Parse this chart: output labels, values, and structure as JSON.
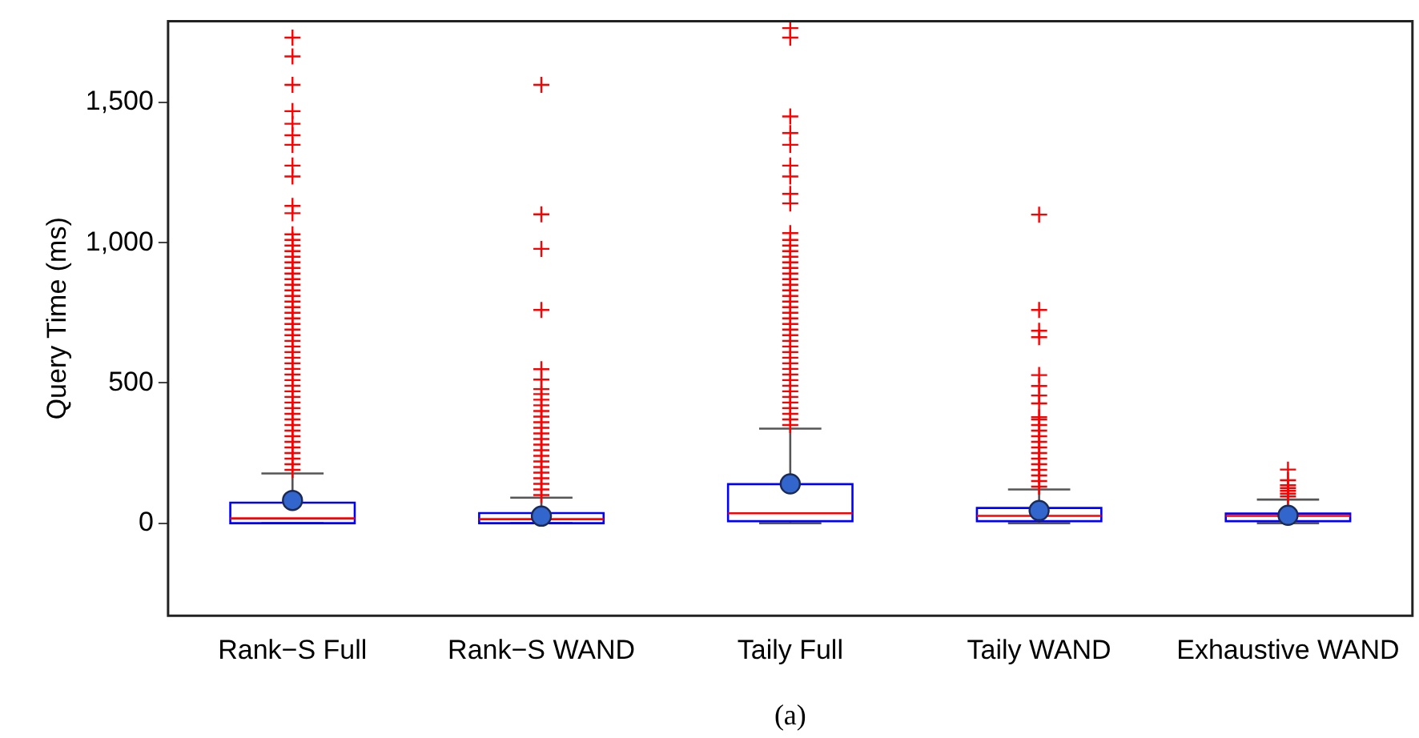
{
  "chart_data": {
    "type": "box",
    "categories": [
      "Rank−S Full",
      "Rank−S WAND",
      "Taily Full",
      "Taily WAND",
      "Exhaustive WAND"
    ],
    "ylabel": "Query Time (ms)",
    "ylim": [
      -330,
      1790
    ],
    "yticks": [
      0,
      500,
      {
        "value": 1000,
        "label": "1,000"
      },
      {
        "value": 1500,
        "label": "1,500"
      }
    ],
    "grid": false,
    "legend": false,
    "annotations": [
      "(a)"
    ],
    "series": [
      {
        "color": "#0000ff",
        "boxes": [
          {
            "low": 0,
            "q1": 0,
            "median": 17,
            "q3": 73,
            "high": 177,
            "mean": 81,
            "outliers": [
              190,
              210,
              230,
              250,
              270,
              290,
              310,
              330,
              350,
              370,
              390,
              410,
              430,
              450,
              470,
              490,
              510,
              530,
              550,
              570,
              590,
              610,
              630,
              650,
              670,
              690,
              710,
              730,
              750,
              770,
              790,
              810,
              830,
              850,
              870,
              890,
              910,
              930,
              950,
              970,
              990,
              1010,
              1030,
              1105,
              1131,
              1236,
              1275,
              1349,
              1383,
              1424,
              1469,
              1563,
              1664,
              1731
            ]
          },
          {
            "low": 0,
            "q1": 0,
            "median": 14,
            "q3": 36,
            "high": 91,
            "mean": 25,
            "outliers": [
              100,
              120,
              140,
              160,
              180,
              200,
              220,
              240,
              260,
              280,
              300,
              320,
              340,
              360,
              380,
              400,
              420,
              440,
              460,
              478,
              512,
              549,
              760,
              978,
              1101,
              1563
            ]
          },
          {
            "low": 0,
            "q1": 7,
            "median": 35,
            "q3": 139,
            "high": 337,
            "mean": 140,
            "outliers": [
              350,
              370,
              390,
              410,
              430,
              450,
              470,
              490,
              510,
              530,
              550,
              570,
              590,
              610,
              630,
              650,
              670,
              690,
              710,
              730,
              750,
              770,
              790,
              810,
              830,
              850,
              870,
              890,
              910,
              930,
              950,
              970,
              990,
              1010,
              1034,
              1140,
              1174,
              1236,
              1275,
              1349,
              1391,
              1450,
              1731,
              1765
            ]
          },
          {
            "low": 0,
            "q1": 7,
            "median": 26,
            "q3": 54,
            "high": 120,
            "mean": 45,
            "outliers": [
              130,
              150,
              170,
              190,
              210,
              230,
              250,
              270,
              290,
              310,
              330,
              350,
              370,
              378,
              427,
              455,
              489,
              528,
              663,
              686,
              760,
              1100
            ]
          },
          {
            "low": 0,
            "q1": 7,
            "median": 26,
            "q3": 34,
            "high": 84,
            "mean": 28,
            "outliers": [
              95,
              105,
              115,
              125,
              135,
              153,
              191
            ]
          }
        ]
      }
    ]
  }
}
